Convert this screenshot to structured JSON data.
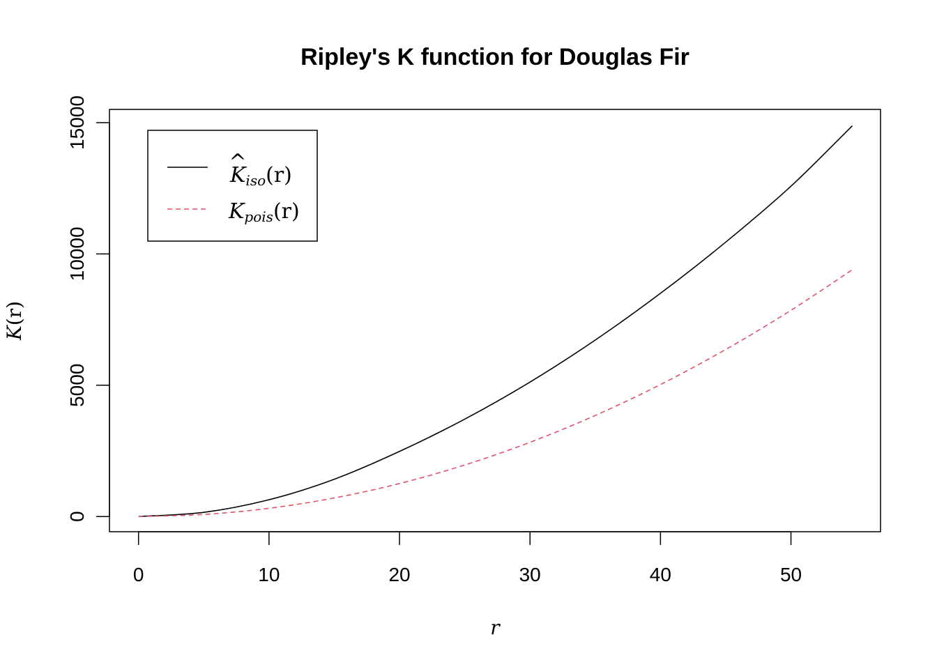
{
  "chart_data": {
    "type": "line",
    "title": "Ripley's K function for Douglas Fir",
    "xlabel": "r",
    "ylabel_main": "K",
    "ylabel_paren": "(r)",
    "xlim": [
      0,
      54.7
    ],
    "ylim": [
      0,
      15000
    ],
    "x_ticks": [
      0,
      10,
      20,
      30,
      40,
      50
    ],
    "x_tick_labels": [
      "0",
      "10",
      "20",
      "30",
      "40",
      "50"
    ],
    "y_ticks": [
      0,
      5000,
      10000,
      15000
    ],
    "y_tick_labels": [
      "0",
      "5000",
      "10000",
      "15000"
    ],
    "grid": false,
    "legend_position": "top-left",
    "x": [
      0,
      5,
      10,
      15,
      20,
      25,
      30,
      35,
      40,
      45,
      50,
      54.7
    ],
    "series": [
      {
        "legend_main": "K",
        "legend_hat": "^",
        "legend_sub": "iso",
        "legend_paren": "(r)",
        "color": "#000000",
        "line_style": "solid",
        "values": [
          0,
          160,
          640,
          1420,
          2480,
          3710,
          5120,
          6720,
          8500,
          10450,
          12580,
          14880
        ]
      },
      {
        "legend_main": "K",
        "legend_hat": "",
        "legend_sub": "pois",
        "legend_paren": "(r)",
        "color": "#DF536B",
        "line_style": "dashed",
        "values": [
          0,
          79,
          314,
          707,
          1257,
          1963,
          2827,
          3848,
          5027,
          6362,
          7854,
          9400
        ]
      }
    ]
  }
}
